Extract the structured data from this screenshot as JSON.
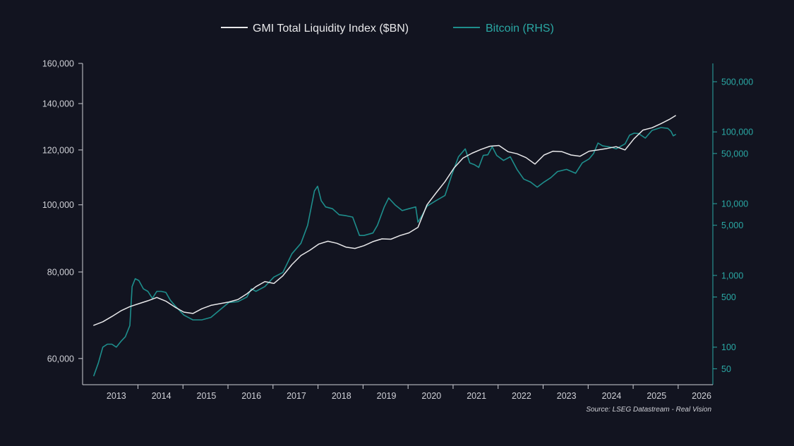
{
  "colors": {
    "background": "#121420",
    "liquidity": "#e8e8ea",
    "bitcoin": "#1e8e8c",
    "axis_left": "#cfd0d6",
    "axis_right": "#2aa8a4"
  },
  "chart_data": {
    "type": "line",
    "title": "",
    "legend": [
      {
        "name": "GMI Total Liquidity Index ($BN)",
        "color": "#e8e8ea"
      },
      {
        "name": "Bitcoin (RHS)",
        "color": "#1e8e8c"
      }
    ],
    "legend_position": "top-center",
    "source": "Source: LSEG Datastream - Real Vision",
    "x_tick_labels": [
      "2013",
      "2014",
      "2015",
      "2016",
      "2017",
      "2018",
      "2019",
      "2020",
      "2021",
      "2022",
      "2023",
      "2024",
      "2025",
      "2026"
    ],
    "x_range": [
      2012.75,
      2026.75
    ],
    "y_left": {
      "scale": "log",
      "range": [
        55000,
        160000
      ],
      "ticks": [
        60000,
        80000,
        100000,
        120000,
        140000,
        160000
      ],
      "tick_labels": [
        "60,000",
        "80,000",
        "100,000",
        "120,000",
        "140,000",
        "160,000"
      ]
    },
    "y_right": {
      "scale": "log",
      "range": [
        30,
        900000
      ],
      "ticks": [
        50,
        100,
        500,
        1000,
        5000,
        10000,
        50000,
        100000,
        500000
      ],
      "tick_labels": [
        "50",
        "100",
        "500",
        "1,000",
        "5,000",
        "10,000",
        "50,000",
        "100,000",
        "500,000"
      ]
    },
    "series": [
      {
        "name": "GMI Total Liquidity Index ($BN)",
        "axis": "left",
        "points": [
          [
            2013.0,
            67000
          ],
          [
            2013.2,
            67800
          ],
          [
            2013.4,
            69000
          ],
          [
            2013.6,
            70300
          ],
          [
            2013.8,
            71300
          ],
          [
            2014.0,
            72000
          ],
          [
            2014.2,
            72700
          ],
          [
            2014.4,
            73500
          ],
          [
            2014.6,
            72600
          ],
          [
            2014.8,
            71200
          ],
          [
            2015.0,
            70000
          ],
          [
            2015.2,
            69700
          ],
          [
            2015.4,
            70800
          ],
          [
            2015.6,
            71600
          ],
          [
            2015.8,
            72000
          ],
          [
            2016.0,
            72400
          ],
          [
            2016.2,
            73000
          ],
          [
            2016.4,
            74400
          ],
          [
            2016.6,
            76200
          ],
          [
            2016.8,
            77500
          ],
          [
            2017.0,
            77000
          ],
          [
            2017.2,
            79000
          ],
          [
            2017.4,
            82000
          ],
          [
            2017.6,
            84500
          ],
          [
            2017.8,
            86000
          ],
          [
            2018.0,
            87800
          ],
          [
            2018.2,
            88600
          ],
          [
            2018.4,
            88000
          ],
          [
            2018.6,
            86900
          ],
          [
            2018.8,
            86500
          ],
          [
            2019.0,
            87300
          ],
          [
            2019.2,
            88500
          ],
          [
            2019.4,
            89300
          ],
          [
            2019.6,
            89200
          ],
          [
            2019.8,
            90300
          ],
          [
            2020.0,
            91100
          ],
          [
            2020.2,
            92800
          ],
          [
            2020.4,
            100000
          ],
          [
            2020.6,
            104000
          ],
          [
            2020.8,
            108000
          ],
          [
            2021.0,
            113000
          ],
          [
            2021.2,
            116800
          ],
          [
            2021.4,
            118700
          ],
          [
            2021.6,
            120200
          ],
          [
            2021.8,
            121500
          ],
          [
            2022.0,
            121800
          ],
          [
            2022.2,
            119300
          ],
          [
            2022.4,
            118500
          ],
          [
            2022.6,
            117000
          ],
          [
            2022.8,
            114500
          ],
          [
            2023.0,
            118000
          ],
          [
            2023.2,
            119500
          ],
          [
            2023.4,
            119300
          ],
          [
            2023.6,
            118000
          ],
          [
            2023.8,
            117500
          ],
          [
            2024.0,
            119500
          ],
          [
            2024.2,
            120000
          ],
          [
            2024.4,
            120600
          ],
          [
            2024.6,
            121300
          ],
          [
            2024.8,
            120000
          ],
          [
            2025.0,
            124600
          ],
          [
            2025.2,
            128200
          ],
          [
            2025.4,
            129200
          ],
          [
            2025.6,
            131000
          ],
          [
            2025.8,
            133000
          ],
          [
            2025.92,
            134500
          ]
        ]
      },
      {
        "name": "Bitcoin (RHS)",
        "axis": "right",
        "points": [
          [
            2013.0,
            40
          ],
          [
            2013.1,
            60
          ],
          [
            2013.2,
            100
          ],
          [
            2013.3,
            110
          ],
          [
            2013.4,
            110
          ],
          [
            2013.5,
            100
          ],
          [
            2013.6,
            120
          ],
          [
            2013.7,
            140
          ],
          [
            2013.8,
            200
          ],
          [
            2013.85,
            700
          ],
          [
            2013.92,
            900
          ],
          [
            2014.0,
            850
          ],
          [
            2014.1,
            650
          ],
          [
            2014.2,
            600
          ],
          [
            2014.3,
            480
          ],
          [
            2014.4,
            600
          ],
          [
            2014.5,
            600
          ],
          [
            2014.6,
            580
          ],
          [
            2014.7,
            450
          ],
          [
            2014.8,
            380
          ],
          [
            2015.0,
            280
          ],
          [
            2015.2,
            240
          ],
          [
            2015.4,
            240
          ],
          [
            2015.6,
            260
          ],
          [
            2015.8,
            330
          ],
          [
            2016.0,
            420
          ],
          [
            2016.2,
            430
          ],
          [
            2016.4,
            500
          ],
          [
            2016.5,
            650
          ],
          [
            2016.6,
            600
          ],
          [
            2016.8,
            700
          ],
          [
            2017.0,
            950
          ],
          [
            2017.2,
            1100
          ],
          [
            2017.4,
            2000
          ],
          [
            2017.6,
            2800
          ],
          [
            2017.75,
            5000
          ],
          [
            2017.9,
            15000
          ],
          [
            2017.97,
            17500
          ],
          [
            2018.05,
            11000
          ],
          [
            2018.15,
            9000
          ],
          [
            2018.3,
            8500
          ],
          [
            2018.45,
            7000
          ],
          [
            2018.6,
            6800
          ],
          [
            2018.75,
            6500
          ],
          [
            2018.9,
            3600
          ],
          [
            2019.0,
            3600
          ],
          [
            2019.2,
            3900
          ],
          [
            2019.3,
            5000
          ],
          [
            2019.45,
            9000
          ],
          [
            2019.55,
            12000
          ],
          [
            2019.7,
            9500
          ],
          [
            2019.85,
            8000
          ],
          [
            2020.0,
            8500
          ],
          [
            2020.15,
            9000
          ],
          [
            2020.2,
            5500
          ],
          [
            2020.3,
            7000
          ],
          [
            2020.4,
            9200
          ],
          [
            2020.6,
            11000
          ],
          [
            2020.8,
            13000
          ],
          [
            2020.95,
            25000
          ],
          [
            2021.1,
            45000
          ],
          [
            2021.25,
            58000
          ],
          [
            2021.35,
            37000
          ],
          [
            2021.45,
            35000
          ],
          [
            2021.55,
            32000
          ],
          [
            2021.65,
            47000
          ],
          [
            2021.75,
            48000
          ],
          [
            2021.85,
            62000
          ],
          [
            2021.95,
            47000
          ],
          [
            2022.1,
            40000
          ],
          [
            2022.25,
            45000
          ],
          [
            2022.4,
            30000
          ],
          [
            2022.55,
            22000
          ],
          [
            2022.7,
            20000
          ],
          [
            2022.85,
            17000
          ],
          [
            2023.0,
            20000
          ],
          [
            2023.15,
            23000
          ],
          [
            2023.3,
            28000
          ],
          [
            2023.5,
            30000
          ],
          [
            2023.7,
            26500
          ],
          [
            2023.85,
            37000
          ],
          [
            2024.0,
            42000
          ],
          [
            2024.1,
            50000
          ],
          [
            2024.2,
            70000
          ],
          [
            2024.3,
            64000
          ],
          [
            2024.5,
            61000
          ],
          [
            2024.6,
            58000
          ],
          [
            2024.8,
            68000
          ],
          [
            2024.9,
            90000
          ],
          [
            2025.0,
            96000
          ],
          [
            2025.1,
            95000
          ],
          [
            2025.25,
            82000
          ],
          [
            2025.4,
            105000
          ],
          [
            2025.6,
            115000
          ],
          [
            2025.75,
            112000
          ],
          [
            2025.82,
            102000
          ],
          [
            2025.87,
            88000
          ],
          [
            2025.92,
            92000
          ]
        ]
      }
    ]
  }
}
